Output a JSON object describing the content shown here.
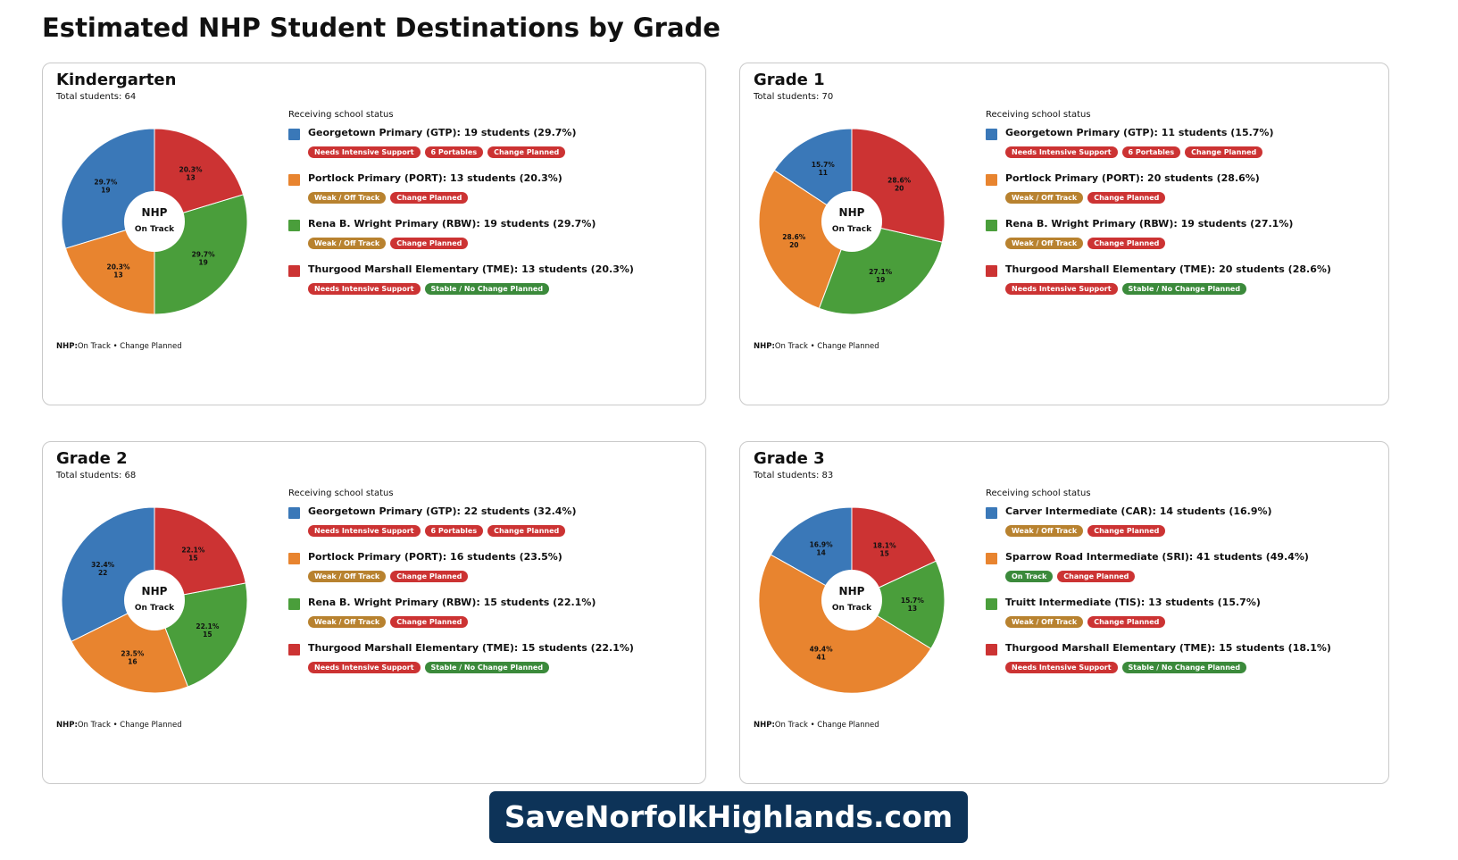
{
  "title": "Estimated NHP Student Destinations by Grade",
  "footer_site": "SaveNorfolkHighlands.com",
  "colors": {
    "blue": "#3a78b8",
    "orange": "#e8842f",
    "green": "#4a9e3b",
    "red": "#cc3333"
  },
  "chart_data": [
    {
      "type": "pie",
      "title": "Kindergarten",
      "total_label": "Total students: 64",
      "center": {
        "title": "NHP",
        "subtitle": "On Track"
      },
      "legend_title": "Receiving school status",
      "footnote": {
        "key": "NHP:",
        "text": "On Track • Change Planned"
      },
      "slices": [
        {
          "label": "Georgetown Primary (GTP): 19 students (29.7%)",
          "value": 19,
          "pct_label": "29.7%",
          "count_label": "19",
          "color": "#3a78b8",
          "tags": [
            {
              "text": "Needs Intensive Support",
              "color": "red"
            },
            {
              "text": "6 Portables",
              "color": "red"
            },
            {
              "text": "Change Planned",
              "color": "red"
            }
          ]
        },
        {
          "label": "Portlock Primary (PORT): 13 students (20.3%)",
          "value": 13,
          "pct_label": "20.3%",
          "count_label": "13",
          "color": "#e8842f",
          "tags": [
            {
              "text": "Weak / Off Track",
              "color": "orange"
            },
            {
              "text": "Change Planned",
              "color": "red"
            }
          ]
        },
        {
          "label": "Rena B. Wright Primary (RBW): 19 students (29.7%)",
          "value": 19,
          "pct_label": "29.7%",
          "count_label": "19",
          "color": "#4a9e3b",
          "tags": [
            {
              "text": "Weak / Off Track",
              "color": "orange"
            },
            {
              "text": "Change Planned",
              "color": "red"
            }
          ]
        },
        {
          "label": "Thurgood Marshall Elementary (TME): 13 students (20.3%)",
          "value": 13,
          "pct_label": "20.3%",
          "count_label": "13",
          "color": "#cc3333",
          "tags": [
            {
              "text": "Needs Intensive Support",
              "color": "red"
            },
            {
              "text": "Stable / No Change Planned",
              "color": "green"
            }
          ]
        }
      ]
    },
    {
      "type": "pie",
      "title": "Grade 1",
      "total_label": "Total students: 70",
      "center": {
        "title": "NHP",
        "subtitle": "On Track"
      },
      "legend_title": "Receiving school status",
      "footnote": {
        "key": "NHP:",
        "text": "On Track • Change Planned"
      },
      "slices": [
        {
          "label": "Georgetown Primary (GTP): 11 students (15.7%)",
          "value": 11,
          "pct_label": "15.7%",
          "count_label": "11",
          "color": "#3a78b8",
          "tags": [
            {
              "text": "Needs Intensive Support",
              "color": "red"
            },
            {
              "text": "6 Portables",
              "color": "red"
            },
            {
              "text": "Change Planned",
              "color": "red"
            }
          ]
        },
        {
          "label": "Portlock Primary (PORT): 20 students (28.6%)",
          "value": 20,
          "pct_label": "28.6%",
          "count_label": "20",
          "color": "#e8842f",
          "tags": [
            {
              "text": "Weak / Off Track",
              "color": "orange"
            },
            {
              "text": "Change Planned",
              "color": "red"
            }
          ]
        },
        {
          "label": "Rena B. Wright Primary (RBW): 19 students (27.1%)",
          "value": 19,
          "pct_label": "27.1%",
          "count_label": "19",
          "color": "#4a9e3b",
          "tags": [
            {
              "text": "Weak / Off Track",
              "color": "orange"
            },
            {
              "text": "Change Planned",
              "color": "red"
            }
          ]
        },
        {
          "label": "Thurgood Marshall Elementary (TME): 20 students (28.6%)",
          "value": 20,
          "pct_label": "28.6%",
          "count_label": "20",
          "color": "#cc3333",
          "tags": [
            {
              "text": "Needs Intensive Support",
              "color": "red"
            },
            {
              "text": "Stable / No Change Planned",
              "color": "green"
            }
          ]
        }
      ]
    },
    {
      "type": "pie",
      "title": "Grade 2",
      "total_label": "Total students: 68",
      "center": {
        "title": "NHP",
        "subtitle": "On Track"
      },
      "legend_title": "Receiving school status",
      "footnote": {
        "key": "NHP:",
        "text": "On Track • Change Planned"
      },
      "slices": [
        {
          "label": "Georgetown Primary (GTP): 22 students (32.4%)",
          "value": 22,
          "pct_label": "32.4%",
          "count_label": "22",
          "color": "#3a78b8",
          "tags": [
            {
              "text": "Needs Intensive Support",
              "color": "red"
            },
            {
              "text": "6 Portables",
              "color": "red"
            },
            {
              "text": "Change Planned",
              "color": "red"
            }
          ]
        },
        {
          "label": "Portlock Primary (PORT): 16 students (23.5%)",
          "value": 16,
          "pct_label": "23.5%",
          "count_label": "16",
          "color": "#e8842f",
          "tags": [
            {
              "text": "Weak / Off Track",
              "color": "orange"
            },
            {
              "text": "Change Planned",
              "color": "red"
            }
          ]
        },
        {
          "label": "Rena B. Wright Primary (RBW): 15 students (22.1%)",
          "value": 15,
          "pct_label": "22.1%",
          "count_label": "15",
          "color": "#4a9e3b",
          "tags": [
            {
              "text": "Weak / Off Track",
              "color": "orange"
            },
            {
              "text": "Change Planned",
              "color": "red"
            }
          ]
        },
        {
          "label": "Thurgood Marshall Elementary (TME): 15 students (22.1%)",
          "value": 15,
          "pct_label": "22.1%",
          "count_label": "15",
          "color": "#cc3333",
          "tags": [
            {
              "text": "Needs Intensive Support",
              "color": "red"
            },
            {
              "text": "Stable / No Change Planned",
              "color": "green"
            }
          ]
        }
      ]
    },
    {
      "type": "pie",
      "title": "Grade 3",
      "total_label": "Total students: 83",
      "center": {
        "title": "NHP",
        "subtitle": "On Track"
      },
      "legend_title": "Receiving school status",
      "footnote": {
        "key": "NHP:",
        "text": "On Track • Change Planned"
      },
      "slices": [
        {
          "label": "Carver Intermediate (CAR): 14 students (16.9%)",
          "value": 14,
          "pct_label": "16.9%",
          "count_label": "14",
          "color": "#3a78b8",
          "tags": [
            {
              "text": "Weak / Off Track",
              "color": "orange"
            },
            {
              "text": "Change Planned",
              "color": "red"
            }
          ]
        },
        {
          "label": "Sparrow Road Intermediate (SRI): 41 students (49.4%)",
          "value": 41,
          "pct_label": "49.4%",
          "count_label": "41",
          "color": "#e8842f",
          "tags": [
            {
              "text": "On Track",
              "color": "green"
            },
            {
              "text": "Change Planned",
              "color": "red"
            }
          ]
        },
        {
          "label": "Truitt Intermediate (TIS): 13 students (15.7%)",
          "value": 13,
          "pct_label": "15.7%",
          "count_label": "13",
          "color": "#4a9e3b",
          "tags": [
            {
              "text": "Weak / Off Track",
              "color": "orange"
            },
            {
              "text": "Change Planned",
              "color": "red"
            }
          ]
        },
        {
          "label": "Thurgood Marshall Elementary (TME): 15 students (18.1%)",
          "value": 15,
          "pct_label": "18.1%",
          "count_label": "15",
          "color": "#cc3333",
          "tags": [
            {
              "text": "Needs Intensive Support",
              "color": "red"
            },
            {
              "text": "Stable / No Change Planned",
              "color": "green"
            }
          ]
        }
      ]
    }
  ]
}
